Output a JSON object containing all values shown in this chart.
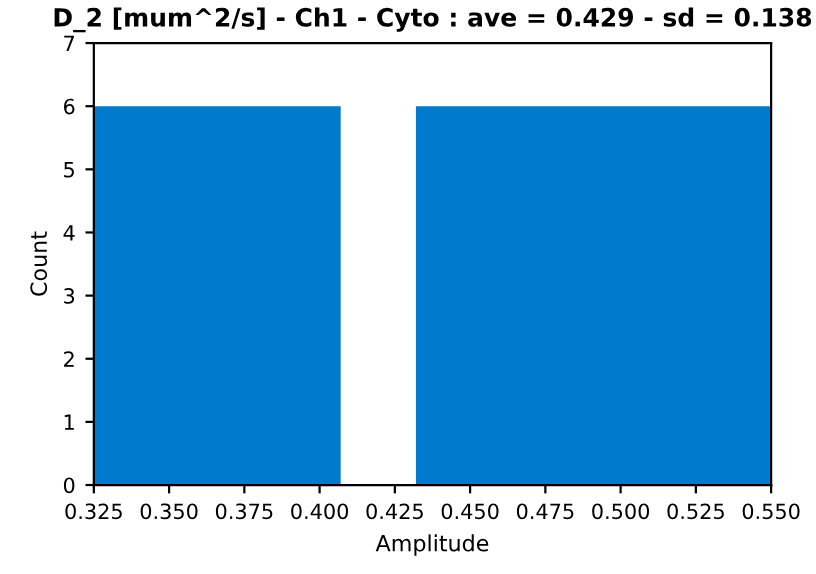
{
  "chart_data": {
    "type": "histogram",
    "title": "D_2 [mum^2/s] - Ch1 - Cyto : ave = 0.429 - sd = 0.138",
    "xlabel": "Amplitude",
    "ylabel": "Count",
    "bins": [
      0.325,
      0.407,
      0.432,
      0.55
    ],
    "values": [
      6,
      0,
      6
    ],
    "color": "#007acc",
    "xlim": [
      0.325,
      0.55
    ],
    "xticks": [
      {
        "value": 0.325,
        "label": "0.325"
      },
      {
        "value": 0.35,
        "label": "0.350"
      },
      {
        "value": 0.375,
        "label": "0.375"
      },
      {
        "value": 0.4,
        "label": "0.400"
      },
      {
        "value": 0.425,
        "label": "0.425"
      },
      {
        "value": 0.45,
        "label": "0.450"
      },
      {
        "value": 0.475,
        "label": "0.475"
      },
      {
        "value": 0.5,
        "label": "0.500"
      },
      {
        "value": 0.525,
        "label": "0.525"
      },
      {
        "value": 0.55,
        "label": "0.550"
      }
    ],
    "ylim": [
      0,
      7
    ],
    "yticks": [
      0,
      1,
      2,
      3,
      4,
      5,
      6,
      7
    ],
    "grid": false
  }
}
